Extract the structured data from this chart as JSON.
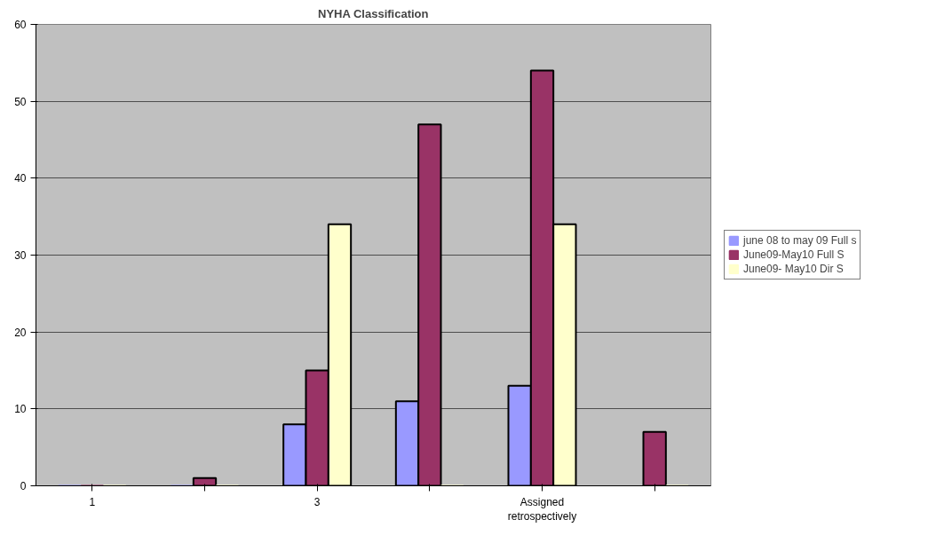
{
  "chart_data": {
    "type": "bar",
    "title": "NYHA Classification",
    "categories": [
      "1",
      null,
      "3",
      null,
      "Assigned retrospectively",
      null
    ],
    "series": [
      {
        "name": "june 08 to may 09 Full s",
        "color": "#9999ff",
        "values": [
          0,
          0,
          8,
          11,
          13,
          null
        ]
      },
      {
        "name": "June09-May10 Full S",
        "color": "#993366",
        "values": [
          0,
          1,
          15,
          47,
          54,
          7
        ]
      },
      {
        "name": "June09- May10 Dir S",
        "color": "#ffffcc",
        "values": [
          0,
          0,
          34,
          0,
          34,
          0
        ]
      }
    ],
    "ylim": [
      0,
      60
    ],
    "yticks": [
      0,
      10,
      20,
      30,
      40,
      50,
      60
    ],
    "grid": "y",
    "legend": "right"
  }
}
